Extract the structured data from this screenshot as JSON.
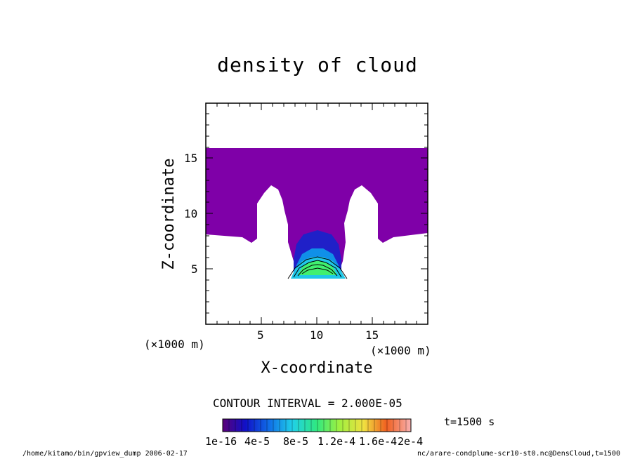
{
  "chart_data": {
    "type": "heatmap",
    "title": "density of cloud",
    "xlabel": "X-coordinate",
    "ylabel": "Z-coordinate",
    "x_unit": "(×1000 m)",
    "y_unit": "(×1000 m)",
    "xlim": [
      0,
      20
    ],
    "ylim": [
      0,
      20
    ],
    "x_ticks": [
      5,
      10,
      15
    ],
    "y_ticks": [
      5,
      10,
      15
    ],
    "contour_interval": "CONTOUR INTERVAL = 2.000E-05",
    "time": "t=1500 s",
    "colorbar": {
      "tick_labels": [
        "1e-16",
        "4e-5",
        "8e-5",
        "1.2e-4",
        "1.6e-4",
        "2e-4"
      ],
      "ticks": [
        0,
        4e-05,
        8e-05,
        0.00012,
        0.00016,
        0.0002
      ],
      "range": [
        0,
        0.0002
      ]
    },
    "colors": {
      "cloud_low": "#7f00a8",
      "blue": "#1a2cd8",
      "cyan": "#20b8e8",
      "green": "#30e870"
    },
    "footer_left": "/home/kitamo/bin/gpview_dump  2006-02-17",
    "footer_right": "nc/arare-condplume-scr10-st0.nc@DensCloud,t=1500"
  }
}
